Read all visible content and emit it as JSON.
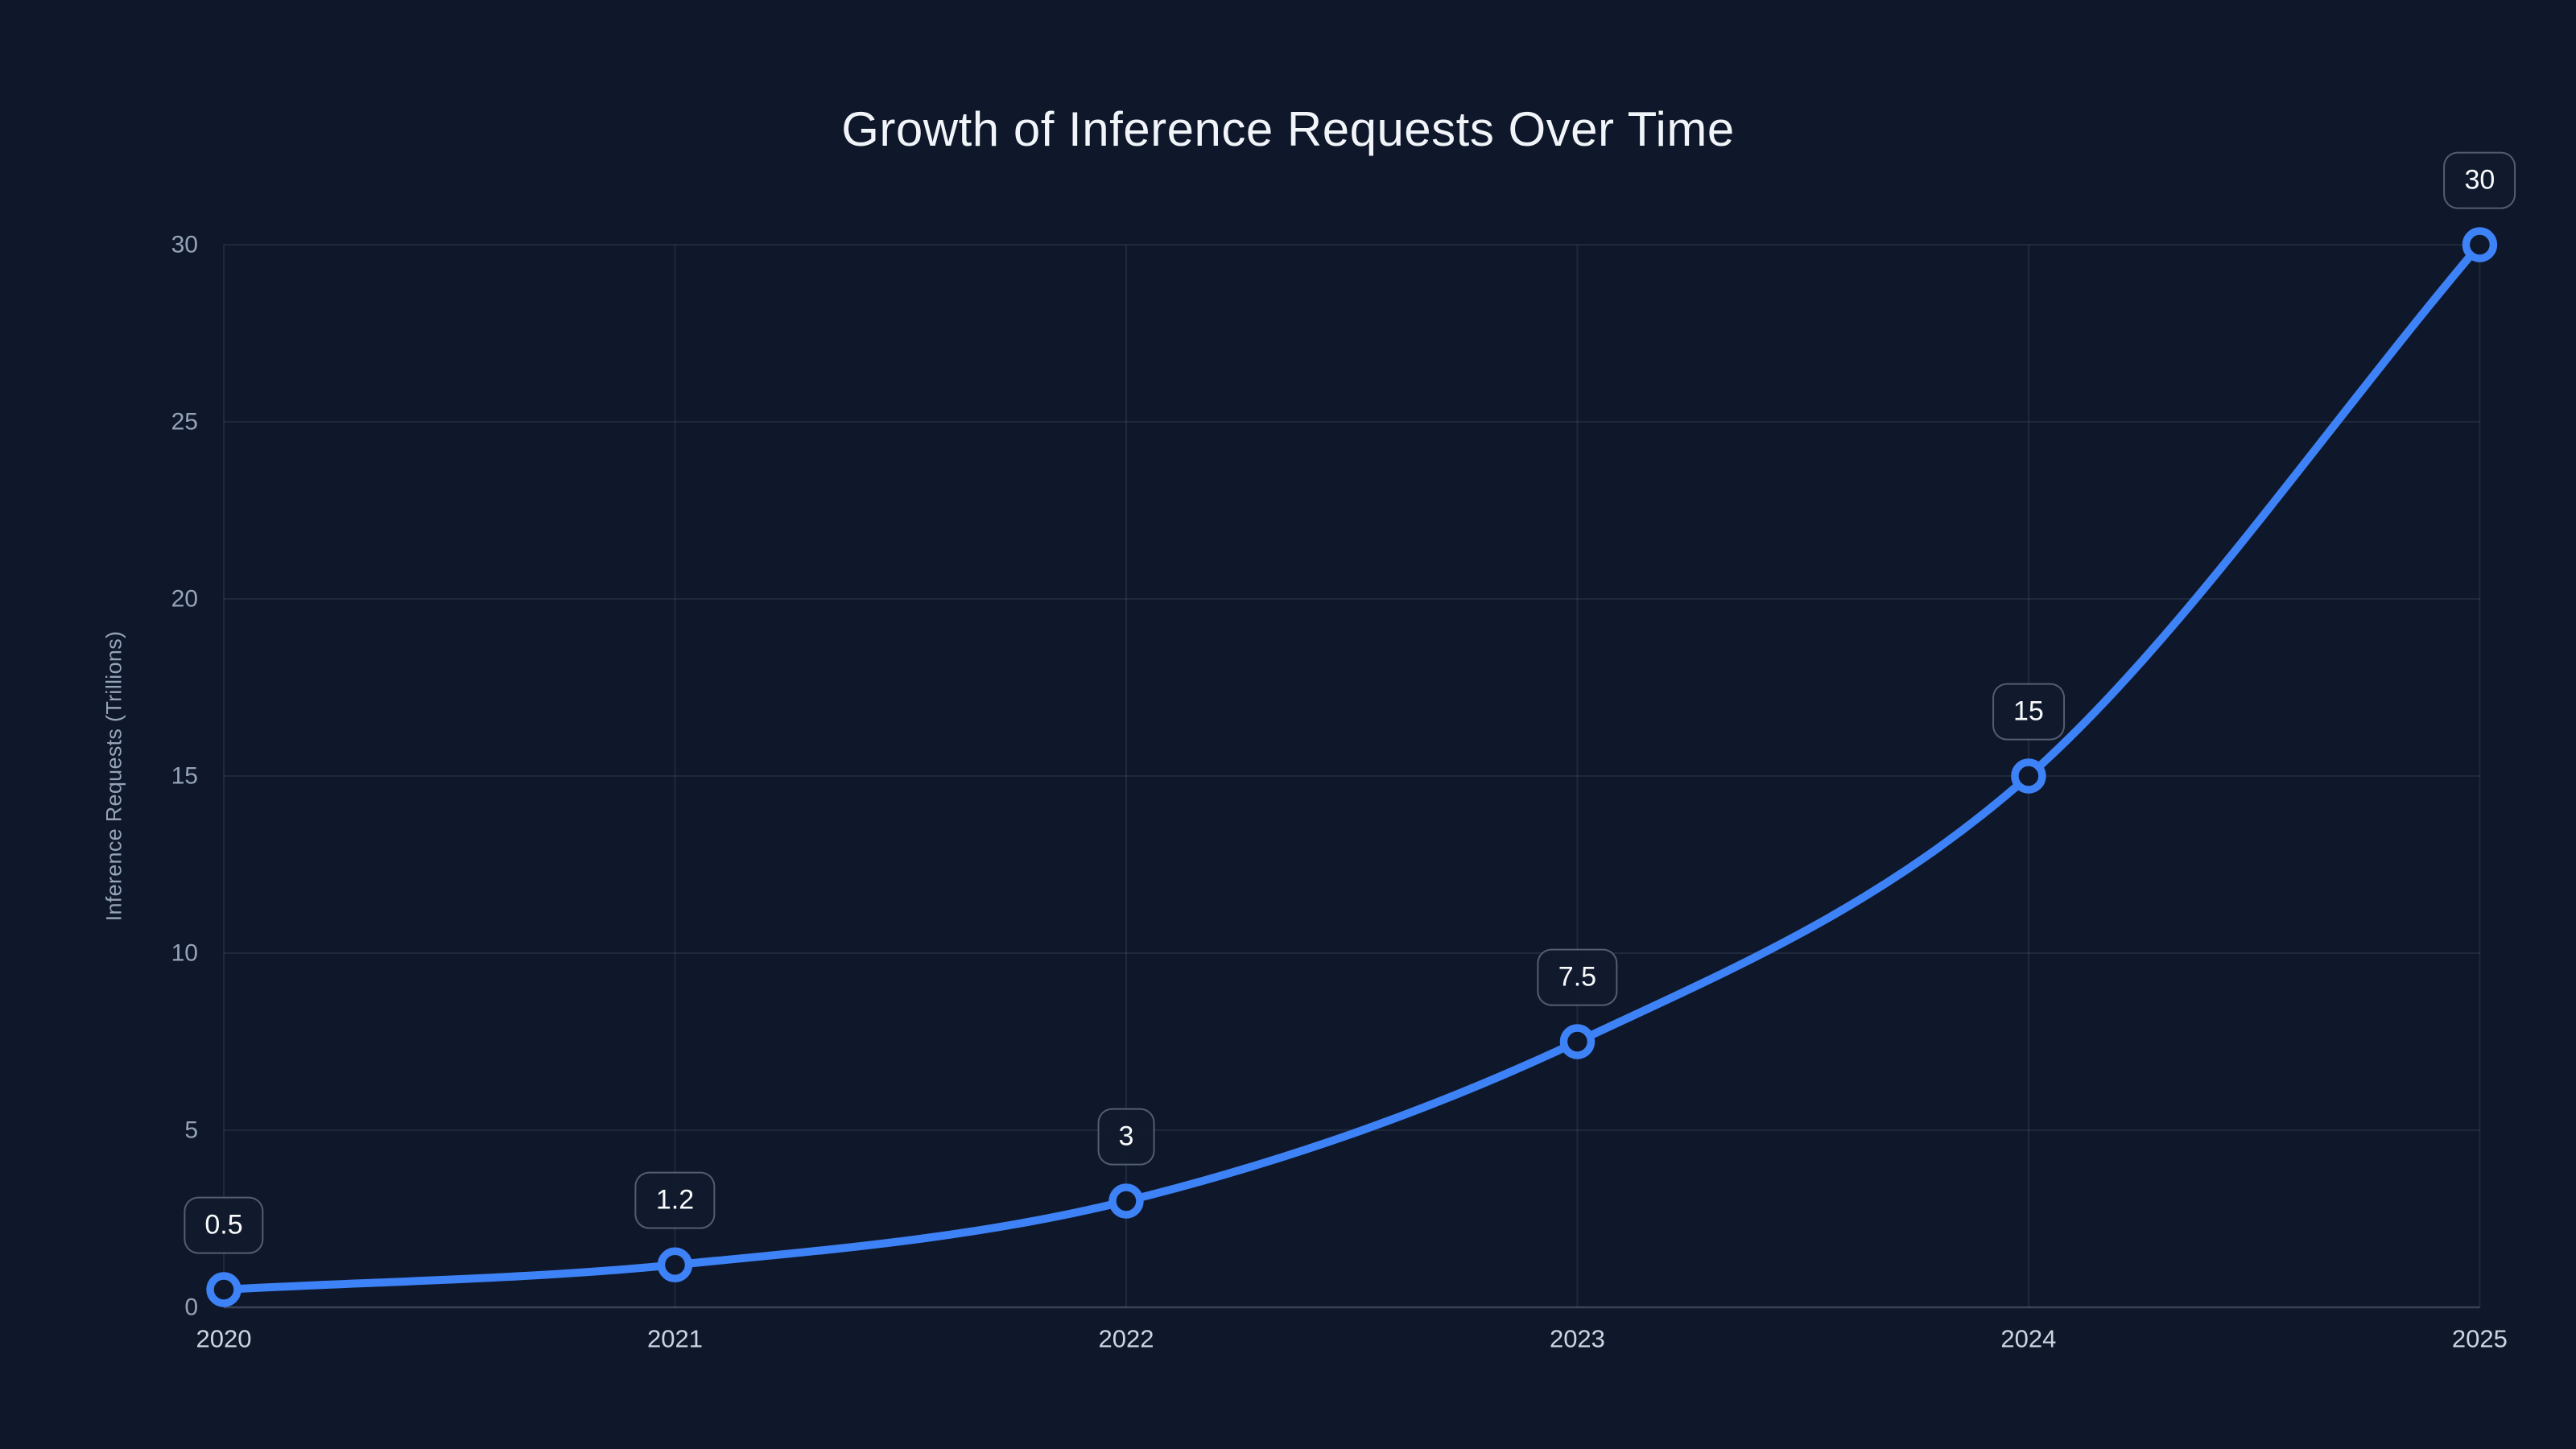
{
  "page": {
    "background_color": "#0f172a"
  },
  "chart_data": {
    "type": "line",
    "title": "Growth of Inference Requests Over Time",
    "categories": [
      "2020",
      "2021",
      "2022",
      "2023",
      "2024",
      "2025"
    ],
    "series": [
      {
        "name": "Inference Requests",
        "values": [
          0.5,
          1.2,
          3,
          7.5,
          15,
          30
        ]
      }
    ],
    "point_labels": [
      "0.5",
      "1.2",
      "3",
      "7.5",
      "15",
      "30"
    ],
    "xlabel": "",
    "ylabel": "Inference Requests (Trillions)",
    "ylim": [
      0,
      30
    ],
    "yticks": [
      0,
      5,
      10,
      15,
      20,
      25,
      30
    ],
    "grid": true,
    "legend": false,
    "line_style": "smooth-monotone",
    "marker_style": "open-circle",
    "colors": {
      "line": "#3d82f6",
      "marker_fill": "#0f172a",
      "grid": "rgba(148,163,184,0.13)",
      "axis": "rgba(148,163,184,0.32)",
      "title_text": "#f1f5f9",
      "y_tick_text": "#94a3b8",
      "x_tick_text": "#cbd5e1",
      "label_text": "#f8fafc",
      "label_border": "rgba(148,163,184,0.5)",
      "label_background": "rgba(17,26,46,0.92)"
    }
  }
}
